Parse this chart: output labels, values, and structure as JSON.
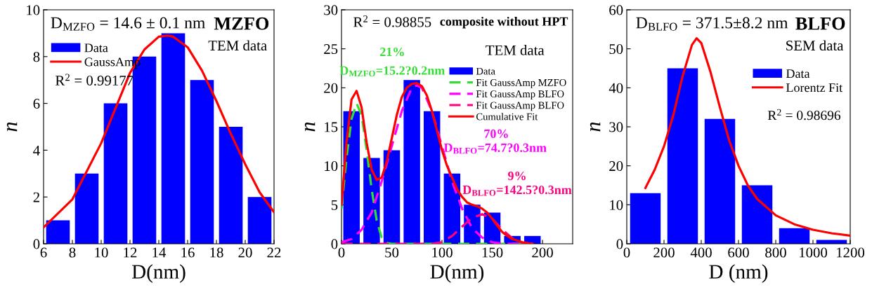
{
  "chart_data": [
    {
      "type": "histogram",
      "title": "MZFO",
      "subtitle": "TEM data",
      "xlabel": "D(nm)",
      "ylabel": "n",
      "bins": [
        6,
        8,
        10,
        12,
        14,
        16,
        18,
        20,
        22
      ],
      "xlim": [
        6,
        22
      ],
      "xticks": [
        6,
        8,
        10,
        12,
        14,
        16,
        18,
        20,
        22
      ],
      "ylim": [
        0,
        10
      ],
      "yticks": [
        0,
        2,
        4,
        6,
        8,
        10
      ],
      "legend": "top left",
      "grid": false,
      "annotations": [
        "D$_{MZFO}$ = 14.6 ± 0.1 nm",
        "R$^{2}$ = 0.99177"
      ],
      "series": [
        {
          "name": "Data",
          "color": "#0000ff",
          "values": [
            1,
            3,
            6,
            8,
            9,
            7,
            5,
            2
          ]
        },
        {
          "name": "GaussAmp",
          "type": "line",
          "color": "#ff0000",
          "line_style": "solid",
          "x": [
            6,
            8,
            10,
            11,
            12,
            13,
            14,
            14.6,
            15,
            16,
            17,
            18,
            19,
            20,
            21,
            22
          ],
          "values": [
            0.7,
            1.9,
            4.3,
            5.8,
            7.3,
            8.3,
            8.85,
            8.9,
            8.85,
            8.4,
            7.4,
            6.1,
            4.7,
            3.4,
            2.2,
            1.35
          ]
        }
      ]
    },
    {
      "type": "histogram",
      "title": "composite without HPT",
      "subtitle": "TEM data",
      "xlabel": "D(nm)",
      "ylabel": "n",
      "bins": [
        0,
        20,
        40,
        60,
        80,
        100,
        120,
        140,
        160,
        180,
        200
      ],
      "xlim": [
        0,
        230
      ],
      "xticks": [
        0,
        50,
        100,
        150,
        200
      ],
      "ylim": [
        0,
        30
      ],
      "yticks": [
        0,
        5,
        10,
        15,
        20,
        25,
        30
      ],
      "legend": "right",
      "grid": false,
      "annotations": [
        "R$^{2}$ = 0.98855",
        "21%",
        "D$_{MZFO}$=15.2?0.2nm",
        "70%",
        "D$_{BLFO}$=74.7?0.3nm",
        "9%",
        "D$_{BLFO}$=142.5?0.3nm"
      ],
      "series": [
        {
          "name": "Data",
          "color": "#0000ff",
          "values": [
            17,
            11,
            12,
            21,
            17,
            9,
            5,
            4,
            1,
            1
          ]
        },
        {
          "name": "Fit GaussAmp MZFO",
          "type": "line",
          "color": "#33dd33",
          "line_style": "dashed",
          "x": [
            0,
            5,
            10,
            15,
            20,
            25,
            30,
            35,
            40,
            45,
            50,
            100,
            150,
            190
          ],
          "values": [
            4.5,
            11,
            16,
            18,
            16.5,
            12,
            7,
            3,
            0.8,
            0.1,
            0,
            0,
            0,
            0
          ]
        },
        {
          "name": "Fit GaussAmp BLFO",
          "type": "line",
          "color": "#ff00ff",
          "line_style": "dashed",
          "x": [
            0,
            10,
            20,
            30,
            40,
            50,
            60,
            70,
            75,
            80,
            90,
            100,
            110,
            120,
            130,
            140,
            150,
            160,
            190
          ],
          "values": [
            0.2,
            0.6,
            1.8,
            4,
            8,
            12.5,
            17,
            20,
            20.3,
            20,
            17,
            12.5,
            8,
            4.5,
            2,
            0.8,
            0.2,
            0,
            0
          ]
        },
        {
          "name": "Fit GaussAmp BLFO",
          "type": "line",
          "color": "#ff0080",
          "line_style": "dashed",
          "x": [
            0,
            90,
            100,
            110,
            120,
            130,
            140,
            150,
            160,
            170,
            180,
            190
          ],
          "values": [
            0,
            0,
            0.2,
            1,
            2.2,
            3.3,
            3.8,
            3.2,
            1.8,
            0.7,
            0.1,
            0
          ]
        },
        {
          "name": "Cumulative Fit",
          "type": "line",
          "color": "#ff0000",
          "line_style": "solid",
          "x": [
            0,
            5,
            10,
            15,
            20,
            25,
            30,
            35,
            40,
            45,
            50,
            55,
            60,
            65,
            70,
            75,
            80,
            85,
            90,
            95,
            100,
            105,
            110,
            115,
            120,
            125,
            130,
            135,
            140,
            145,
            150,
            155,
            160,
            165,
            170,
            180,
            190
          ],
          "values": [
            5,
            13,
            18.5,
            19.6,
            17.5,
            13,
            9.5,
            8.2,
            8.5,
            10.5,
            13.5,
            16.5,
            18.8,
            20,
            20.5,
            20.6,
            20.2,
            19,
            17,
            14.5,
            12,
            10,
            8.5,
            7,
            6,
            5.3,
            5,
            4.8,
            4.5,
            4,
            3.2,
            2.3,
            1.5,
            1,
            0.6,
            0.2,
            0
          ]
        }
      ]
    },
    {
      "type": "histogram",
      "title": "BLFO",
      "subtitle": "SEM data",
      "xlabel": "D (nm)",
      "ylabel": "n",
      "bins": [
        0,
        200,
        400,
        600,
        800,
        1000,
        1200
      ],
      "xlim": [
        0,
        1200
      ],
      "xticks": [
        0,
        200,
        400,
        600,
        800,
        1000,
        1200
      ],
      "ylim": [
        0,
        60
      ],
      "yticks": [
        0,
        10,
        20,
        30,
        40,
        50,
        60
      ],
      "legend": "right",
      "grid": false,
      "annotations": [
        "D$_{BLFO}$ = 371.5±8.2 nm",
        "R$^{2}$ = 0.98696"
      ],
      "series": [
        {
          "name": "Data",
          "color": "#0000ff",
          "values": [
            13,
            45,
            32,
            15,
            4,
            1
          ]
        },
        {
          "name": "Lorentz Fit",
          "type": "line",
          "color": "#ff0000",
          "line_style": "solid",
          "x": [
            100,
            150,
            200,
            250,
            300,
            350,
            375,
            400,
            450,
            500,
            550,
            600,
            650,
            700,
            800,
            900,
            1000,
            1100,
            1200
          ],
          "values": [
            14.3,
            19,
            25,
            33,
            43,
            51,
            52.7,
            51.5,
            44,
            35,
            26.5,
            20,
            15,
            11.5,
            7.3,
            5,
            3.6,
            2.7,
            2.1
          ]
        }
      ]
    }
  ]
}
